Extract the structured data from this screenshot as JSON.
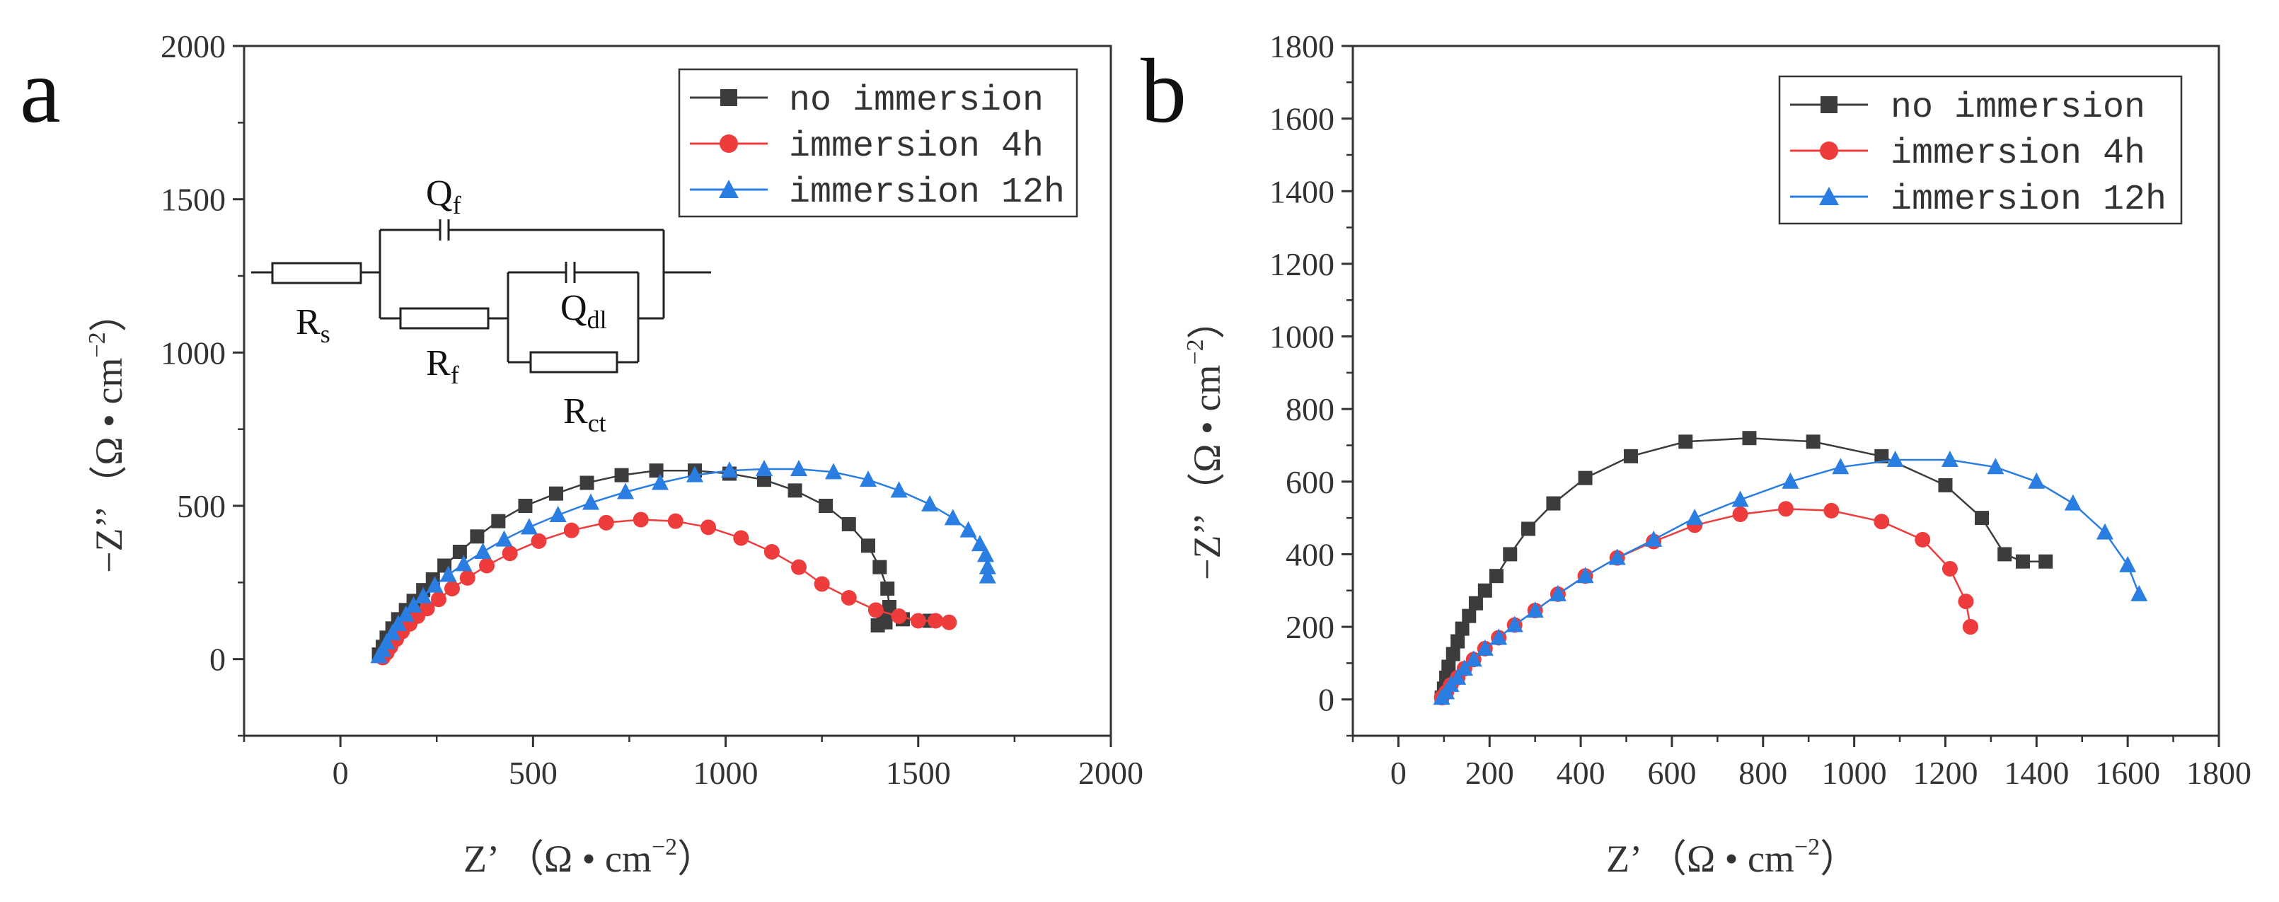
{
  "colors": {
    "no_immersion": "#3c3c3c",
    "immersion_4h": "#ee3b3b",
    "immersion_12h": "#2a7de1",
    "axis": "#333333"
  },
  "circuit": {
    "qf_main": "Q",
    "qf_sub": "f",
    "rs_main": "R",
    "rs_sub": "s",
    "rf_main": "R",
    "rf_sub": "f",
    "qdl_main": "Q",
    "qdl_sub": "dl",
    "rct_main": "R",
    "rct_sub": "ct"
  },
  "chart_data": [
    {
      "panel": "a",
      "type": "scatter",
      "xlabel_main": "Z’",
      "xlabel_unit": "（Ω • cm",
      "xlabel_exp": "−2",
      "xlabel_close": "）",
      "ylabel_main": "−Z’’",
      "ylabel_unit": "（Ω • cm",
      "ylabel_exp": "−2",
      "ylabel_close": "）",
      "xlim": [
        -250,
        2000
      ],
      "ylim": [
        -250,
        2000
      ],
      "xticks": [
        0,
        500,
        1000,
        1500,
        2000
      ],
      "yticks": [
        0,
        500,
        1000,
        1500,
        2000
      ],
      "xtick_labels": [
        "0",
        "500",
        "1000",
        "1500",
        "2000"
      ],
      "ytick_labels": [
        "0",
        "500",
        "1000",
        "1500",
        "2000"
      ],
      "legend_position": "top-right",
      "series": [
        {
          "name": "no immersion",
          "marker": "square",
          "x": [
            100,
            110,
            120,
            135,
            150,
            170,
            190,
            215,
            240,
            270,
            310,
            355,
            410,
            480,
            560,
            640,
            730,
            820,
            920,
            1010,
            1100,
            1180,
            1260,
            1320,
            1370,
            1400,
            1420,
            1425,
            1415,
            1395,
            1410,
            1460,
            1530
          ],
          "y": [
            15,
            40,
            70,
            100,
            130,
            160,
            190,
            225,
            260,
            305,
            350,
            400,
            450,
            500,
            540,
            575,
            600,
            615,
            615,
            605,
            585,
            550,
            500,
            440,
            370,
            300,
            230,
            170,
            120,
            110,
            130,
            130,
            125
          ]
        },
        {
          "name": "immersion 4h",
          "marker": "circle",
          "x": [
            110,
            120,
            130,
            145,
            160,
            180,
            200,
            225,
            255,
            290,
            330,
            380,
            440,
            515,
            600,
            690,
            780,
            870,
            955,
            1040,
            1120,
            1190,
            1250,
            1320,
            1390,
            1450,
            1500,
            1545,
            1580
          ],
          "y": [
            5,
            20,
            40,
            65,
            90,
            115,
            140,
            165,
            195,
            230,
            265,
            305,
            345,
            385,
            420,
            445,
            455,
            450,
            430,
            395,
            350,
            300,
            245,
            200,
            160,
            140,
            125,
            125,
            120
          ]
        },
        {
          "name": "immersion 12h",
          "marker": "triangle",
          "x": [
            100,
            110,
            120,
            135,
            150,
            170,
            190,
            215,
            245,
            280,
            320,
            370,
            425,
            490,
            565,
            650,
            740,
            830,
            920,
            1010,
            1100,
            1190,
            1280,
            1370,
            1450,
            1530,
            1590,
            1630,
            1660,
            1675,
            1680,
            1680
          ],
          "y": [
            10,
            30,
            55,
            85,
            115,
            145,
            175,
            205,
            240,
            275,
            310,
            350,
            390,
            430,
            470,
            510,
            545,
            575,
            600,
            615,
            620,
            620,
            610,
            585,
            550,
            505,
            460,
            420,
            375,
            340,
            300,
            270
          ]
        }
      ]
    },
    {
      "panel": "b",
      "type": "scatter",
      "xlabel_main": "Z’",
      "xlabel_unit": "（Ω • cm",
      "xlabel_exp": "−2",
      "xlabel_close": "）",
      "ylabel_main": "−Z’’",
      "ylabel_unit": "（Ω • cm",
      "ylabel_exp": "−2",
      "ylabel_close": "）",
      "xlim": [
        -100,
        1800
      ],
      "ylim": [
        -100,
        1800
      ],
      "xticks": [
        0,
        200,
        400,
        600,
        800,
        1000,
        1200,
        1400,
        1600,
        1800
      ],
      "yticks": [
        0,
        200,
        400,
        600,
        800,
        1000,
        1200,
        1400,
        1600,
        1800
      ],
      "xtick_labels": [
        "0",
        "200",
        "400",
        "600",
        "800",
        "1000",
        "1200",
        "1400",
        "1600",
        "1800"
      ],
      "ytick_labels": [
        "0",
        "200",
        "400",
        "600",
        "800",
        "1000",
        "1200",
        "1400",
        "1600",
        "1800"
      ],
      "legend_position": "top-right",
      "series": [
        {
          "name": "no immersion",
          "marker": "square",
          "x": [
            95,
            100,
            105,
            110,
            120,
            130,
            140,
            155,
            170,
            190,
            215,
            245,
            285,
            340,
            410,
            510,
            630,
            770,
            910,
            1060,
            1200,
            1280,
            1330,
            1370,
            1420
          ],
          "y": [
            5,
            30,
            60,
            90,
            125,
            160,
            195,
            230,
            265,
            300,
            340,
            400,
            470,
            540,
            610,
            670,
            710,
            720,
            710,
            670,
            590,
            500,
            400,
            380,
            380
          ]
        },
        {
          "name": "immersion 4h",
          "marker": "circle",
          "x": [
            95,
            105,
            115,
            130,
            145,
            165,
            190,
            220,
            255,
            300,
            350,
            410,
            480,
            560,
            650,
            750,
            850,
            950,
            1060,
            1150,
            1210,
            1245,
            1255,
            1255
          ],
          "y": [
            5,
            20,
            40,
            60,
            85,
            110,
            140,
            170,
            205,
            245,
            290,
            340,
            390,
            435,
            480,
            510,
            525,
            520,
            490,
            440,
            360,
            270,
            200,
            200
          ]
        },
        {
          "name": "immersion 12h",
          "marker": "triangle",
          "x": [
            95,
            105,
            115,
            130,
            145,
            165,
            190,
            220,
            255,
            300,
            350,
            410,
            480,
            560,
            650,
            750,
            860,
            970,
            1090,
            1210,
            1310,
            1400,
            1480,
            1550,
            1600,
            1625
          ],
          "y": [
            5,
            20,
            40,
            60,
            85,
            110,
            140,
            170,
            205,
            245,
            290,
            340,
            390,
            440,
            500,
            550,
            600,
            640,
            660,
            660,
            640,
            600,
            540,
            460,
            370,
            290
          ]
        }
      ]
    }
  ]
}
